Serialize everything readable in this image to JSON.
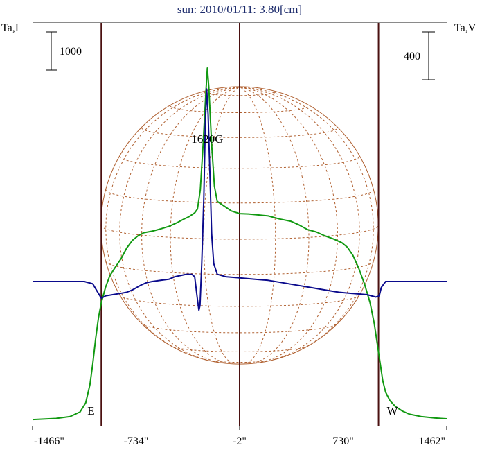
{
  "chart_data": {
    "type": "line",
    "title": "sun: 2010/01/11: 3.80[cm]",
    "left_axis_label": "Ta,I",
    "right_axis_label": "Ta,V",
    "scale_bar_left": "1000",
    "scale_bar_right": "400",
    "x_unit": "arcsec",
    "xlim": [
      -1466,
      1462
    ],
    "x_tick_labels": [
      "-1466\"",
      "-734\"",
      "-2\"",
      "730\"",
      "1462\""
    ],
    "x_ticks": [
      -1466,
      -734,
      -2,
      730,
      1462
    ],
    "limb_markers": [
      {
        "label": "E",
        "x": -980
      },
      {
        "label": "W",
        "x": 980
      }
    ],
    "center_line_x": -2,
    "source_annotation": {
      "label": "1620G",
      "x": -230
    },
    "colors": {
      "title": "#1b2a6b",
      "intensity": "#119911",
      "polarization": "#0a0a8c",
      "limb_lines": "#4a1010",
      "solar_grid": "#b06030",
      "frame": "#8a8a8a"
    },
    "series": [
      {
        "name": "I",
        "points": [
          [
            -1466,
            -20
          ],
          [
            -1400,
            -10
          ],
          [
            -1300,
            10
          ],
          [
            -1200,
            60
          ],
          [
            -1130,
            180
          ],
          [
            -1090,
            420
          ],
          [
            -1060,
            900
          ],
          [
            -1040,
            1450
          ],
          [
            -1020,
            2100
          ],
          [
            -1000,
            2650
          ],
          [
            -980,
            3050
          ],
          [
            -950,
            3450
          ],
          [
            -920,
            3750
          ],
          [
            -880,
            3980
          ],
          [
            -840,
            4200
          ],
          [
            -800,
            4480
          ],
          [
            -760,
            4680
          ],
          [
            -720,
            4800
          ],
          [
            -680,
            4880
          ],
          [
            -620,
            4920
          ],
          [
            -560,
            4980
          ],
          [
            -500,
            5050
          ],
          [
            -440,
            5150
          ],
          [
            -400,
            5230
          ],
          [
            -360,
            5300
          ],
          [
            -320,
            5400
          ],
          [
            -300,
            5500
          ],
          [
            -280,
            6000
          ],
          [
            -260,
            7200
          ],
          [
            -240,
            8600
          ],
          [
            -230,
            9200
          ],
          [
            -220,
            8700
          ],
          [
            -200,
            7200
          ],
          [
            -180,
            6100
          ],
          [
            -160,
            5700
          ],
          [
            -120,
            5600
          ],
          [
            -60,
            5450
          ],
          [
            -2,
            5380
          ],
          [
            60,
            5370
          ],
          [
            120,
            5350
          ],
          [
            200,
            5320
          ],
          [
            280,
            5240
          ],
          [
            360,
            5180
          ],
          [
            420,
            5080
          ],
          [
            480,
            4960
          ],
          [
            540,
            4900
          ],
          [
            600,
            4800
          ],
          [
            660,
            4720
          ],
          [
            720,
            4620
          ],
          [
            760,
            4500
          ],
          [
            800,
            4280
          ],
          [
            840,
            3950
          ],
          [
            880,
            3550
          ],
          [
            920,
            3050
          ],
          [
            950,
            2500
          ],
          [
            970,
            2000
          ],
          [
            990,
            1500
          ],
          [
            1010,
            1000
          ],
          [
            1030,
            700
          ],
          [
            1060,
            480
          ],
          [
            1100,
            320
          ],
          [
            1150,
            200
          ],
          [
            1200,
            120
          ],
          [
            1280,
            60
          ],
          [
            1380,
            20
          ],
          [
            1462,
            0
          ]
        ]
      },
      {
        "name": "V",
        "points": [
          [
            -1466,
            0
          ],
          [
            -1300,
            0
          ],
          [
            -1100,
            0
          ],
          [
            -1040,
            -20
          ],
          [
            -1010,
            -80
          ],
          [
            -980,
            -140
          ],
          [
            -950,
            -120
          ],
          [
            -900,
            -110
          ],
          [
            -850,
            -100
          ],
          [
            -800,
            -90
          ],
          [
            -760,
            -70
          ],
          [
            -700,
            -30
          ],
          [
            -660,
            -10
          ],
          [
            -620,
            0
          ],
          [
            -560,
            10
          ],
          [
            -500,
            20
          ],
          [
            -460,
            40
          ],
          [
            -420,
            50
          ],
          [
            -380,
            60
          ],
          [
            -340,
            60
          ],
          [
            -320,
            40
          ],
          [
            -300,
            -150
          ],
          [
            -290,
            -240
          ],
          [
            -282,
            -200
          ],
          [
            -270,
            150
          ],
          [
            -255,
            700
          ],
          [
            -245,
            1300
          ],
          [
            -235,
            1610
          ],
          [
            -225,
            1400
          ],
          [
            -212,
            900
          ],
          [
            -200,
            400
          ],
          [
            -185,
            150
          ],
          [
            -160,
            60
          ],
          [
            -100,
            40
          ],
          [
            -2,
            30
          ],
          [
            100,
            20
          ],
          [
            200,
            10
          ],
          [
            300,
            -10
          ],
          [
            400,
            -30
          ],
          [
            500,
            -50
          ],
          [
            600,
            -70
          ],
          [
            700,
            -90
          ],
          [
            800,
            -100
          ],
          [
            900,
            -110
          ],
          [
            960,
            -130
          ],
          [
            985,
            -120
          ],
          [
            1000,
            -50
          ],
          [
            1030,
            0
          ],
          [
            1100,
            0
          ],
          [
            1300,
            0
          ],
          [
            1462,
            0
          ]
        ]
      }
    ]
  }
}
